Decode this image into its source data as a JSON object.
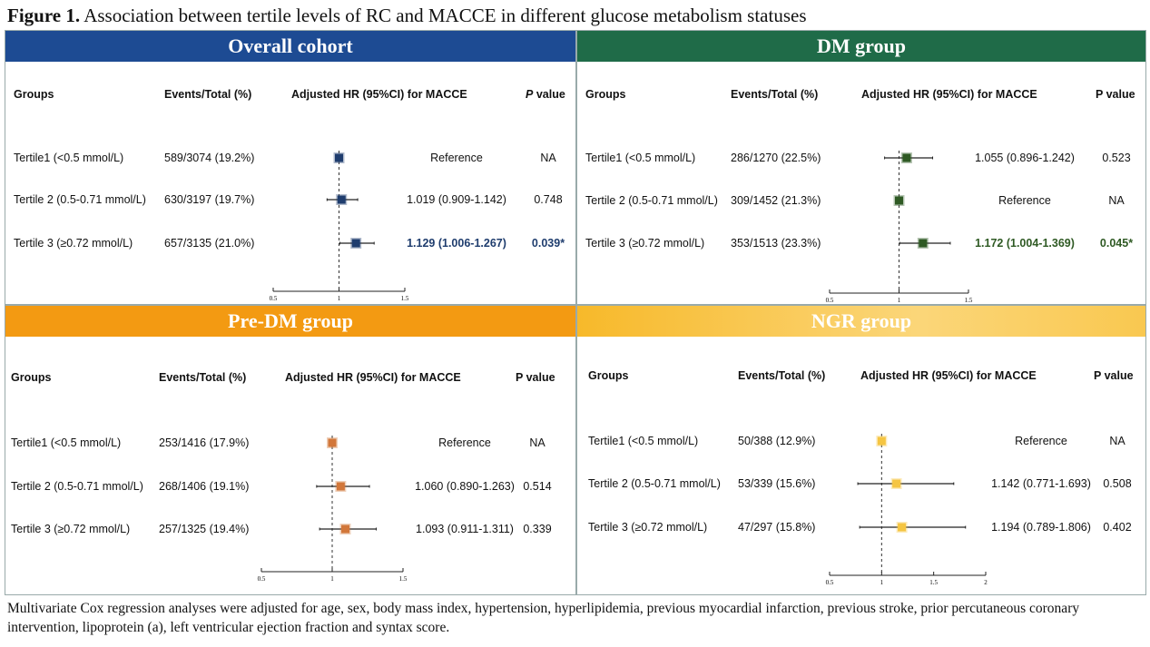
{
  "figure_label": "Figure 1.",
  "figure_title": "Association between tertile levels of RC and MACCE in different glucose metabolism statuses",
  "caption": "Multivariate Cox regression analyses were adjusted for age, sex, body mass index, hypertension, hyperlipidemia, previous myocardial infarction, previous stroke, prior percutaneous coronary intervention,  lipoprotein (a), left ventricular ejection fraction and syntax score.",
  "chart_data": [
    {
      "type": "forest",
      "title": "Overall cohort",
      "band_color": "#1d4b93",
      "marker_color": "#1f3d6e",
      "headers": {
        "groups": "Groups",
        "events": "Events/Total (%)",
        "hr": "Adjusted HR (95%CI) for MACCE",
        "p_italic": "P",
        "p": "value"
      },
      "xticks": [
        "0.5",
        "1",
        "1.5"
      ],
      "xlim": [
        0.5,
        1.5
      ],
      "ref_line": 1,
      "rows": [
        {
          "group": "Tertile1 (<0.5 mmol/L)",
          "events": "589/3074 (19.2%)",
          "hr_text": "Reference",
          "p": "NA",
          "hr": 1,
          "lo": null,
          "hi": null,
          "sig": false
        },
        {
          "group": "Tertile 2 (0.5-0.71 mmol/L)",
          "events": "630/3197 (19.7%)",
          "hr_text": "1.019 (0.909-1.142)",
          "p": "0.748",
          "hr": 1.019,
          "lo": 0.909,
          "hi": 1.142,
          "sig": false
        },
        {
          "group": "Tertile 3 (≥0.72  mmol/L)",
          "events": "657/3135 (21.0%)",
          "hr_text": "1.129 (1.006-1.267)",
          "p": "0.039*",
          "hr": 1.129,
          "lo": 1.006,
          "hi": 1.267,
          "sig": true
        }
      ]
    },
    {
      "type": "forest",
      "title": "DM group",
      "band_color": "#1f6b48",
      "marker_color": "#2f5a24",
      "headers": {
        "groups": "Groups",
        "events": "Events/Total (%)",
        "hr": "Adjusted HR (95%CI) for MACCE",
        "p_italic": "",
        "p": "P value"
      },
      "xticks": [
        "0.5",
        "1",
        "1.5"
      ],
      "xlim": [
        0.5,
        1.5
      ],
      "ref_line": 1,
      "rows": [
        {
          "group": "Tertile1 (<0.5 mmol/L)",
          "events": "286/1270 (22.5%)",
          "hr_text": "1.055 (0.896-1.242)",
          "p": "0.523",
          "hr": 1.055,
          "lo": 0.896,
          "hi": 1.242,
          "sig": false
        },
        {
          "group": "Tertile 2 (0.5-0.71 mmol/L)",
          "events": "309/1452 (21.3%)",
          "hr_text": "Reference",
          "p": "NA",
          "hr": 1,
          "lo": null,
          "hi": null,
          "sig": false
        },
        {
          "group": "Tertile 3 (≥0.72  mmol/L)",
          "events": "353/1513 (23.3%)",
          "hr_text": "1.172 (1.004-1.369)",
          "p": "0.045*",
          "hr": 1.172,
          "lo": 1.004,
          "hi": 1.369,
          "sig": true
        }
      ]
    },
    {
      "type": "forest",
      "title": "Pre-DM group",
      "band_color": "#f39a12",
      "marker_color": "#d2773a",
      "headers": {
        "groups": "Groups",
        "events": "Events/Total (%)",
        "hr": "Adjusted HR (95%CI) for MACCE",
        "p_italic": "",
        "p": "P value"
      },
      "xticks": [
        "0.5",
        "1",
        "1.5"
      ],
      "xlim": [
        0.5,
        1.5
      ],
      "ref_line": 1,
      "rows": [
        {
          "group": "Tertile1 (<0.5 mmol/L)",
          "events": "253/1416 (17.9%)",
          "hr_text": "Reference",
          "p": "NA",
          "hr": 1,
          "lo": null,
          "hi": null,
          "sig": false
        },
        {
          "group": "Tertile 2 (0.5-0.71 mmol/L)",
          "events": "268/1406 (19.1%)",
          "hr_text": "1.060 (0.890-1.263)",
          "p": "0.514",
          "hr": 1.06,
          "lo": 0.89,
          "hi": 1.263,
          "sig": false
        },
        {
          "group": "Tertile 3 (≥0.72  mmol/L)",
          "events": "257/1325 (19.4%)",
          "hr_text": "1.093 (0.911-1.311)",
          "p": "0.339",
          "hr": 1.093,
          "lo": 0.911,
          "hi": 1.311,
          "sig": false
        }
      ]
    },
    {
      "type": "forest",
      "title": "NGR group",
      "band_color": "#f6c02f",
      "marker_color": "#f5c542",
      "headers": {
        "groups": "Groups",
        "events": "Events/Total (%)",
        "hr": "Adjusted HR (95%CI) for MACCE",
        "p_italic": "",
        "p": "P value"
      },
      "xticks": [
        "0.5",
        "1",
        "1.5",
        "2"
      ],
      "xlim": [
        0.5,
        2
      ],
      "ref_line": 1,
      "rows": [
        {
          "group": "Tertile1 (<0.5 mmol/L)",
          "events": "50/388 (12.9%)",
          "hr_text": "Reference",
          "p": "NA",
          "hr": 1,
          "lo": null,
          "hi": null,
          "sig": false
        },
        {
          "group": "Tertile 2 (0.5-0.71 mmol/L)",
          "events": "53/339 (15.6%)",
          "hr_text": "1.142 (0.771-1.693)",
          "p": "0.508",
          "hr": 1.142,
          "lo": 0.771,
          "hi": 1.693,
          "sig": false
        },
        {
          "group": "Tertile 3 (≥0.72  mmol/L)",
          "events": "47/297 (15.8%)",
          "hr_text": "1.194 (0.789-1.806)",
          "p": "0.402",
          "hr": 1.194,
          "lo": 0.789,
          "hi": 1.806,
          "sig": false
        }
      ]
    }
  ]
}
